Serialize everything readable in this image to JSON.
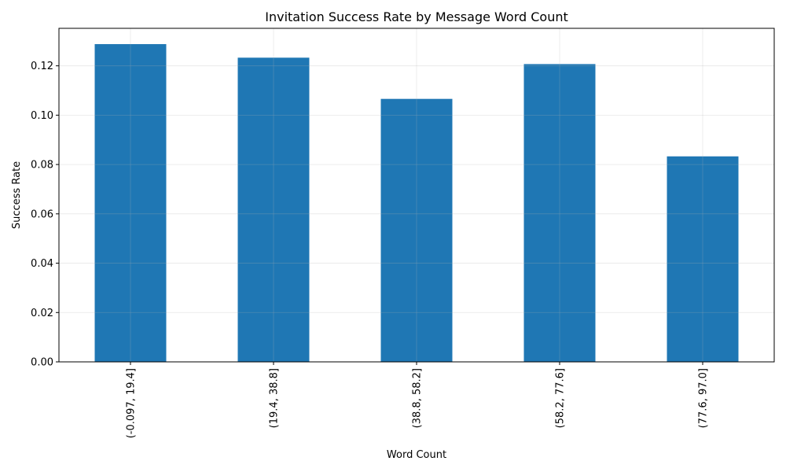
{
  "chart_data": {
    "type": "bar",
    "title": "Invitation Success Rate by Message Word Count",
    "xlabel": "Word Count",
    "ylabel": "Success Rate",
    "categories": [
      "(-0.097, 19.4]",
      "(19.4, 38.8]",
      "(38.8, 58.2]",
      "(58.2, 77.6]",
      "(77.6, 97.0]"
    ],
    "values": [
      0.1288,
      0.1233,
      0.1066,
      0.1207,
      0.0833
    ],
    "ylim": [
      0,
      0.1352
    ],
    "yticks": [
      0.0,
      0.02,
      0.04,
      0.06,
      0.08,
      0.1,
      0.12
    ],
    "ytick_labels": [
      "0.00",
      "0.02",
      "0.04",
      "0.06",
      "0.08",
      "0.10",
      "0.12"
    ],
    "grid": true,
    "bar_color": "#1f77b4"
  }
}
